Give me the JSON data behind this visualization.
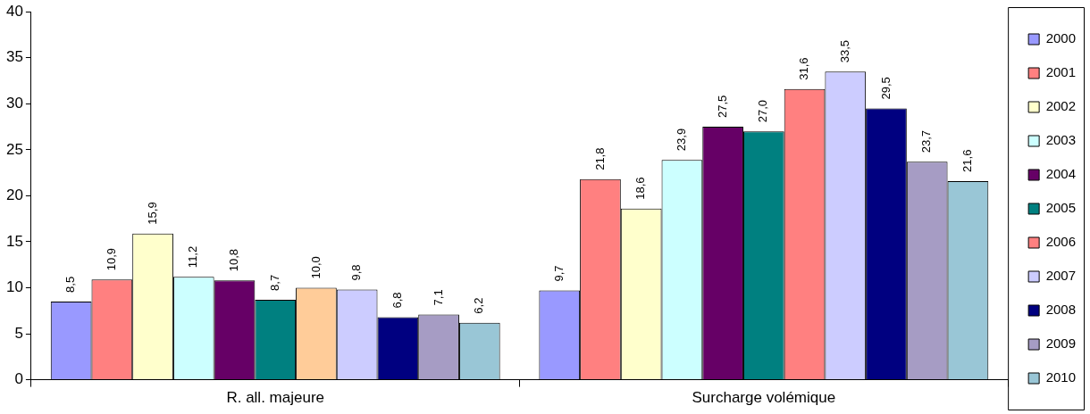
{
  "chart_data": {
    "type": "bar",
    "categories": [
      "R. all. majeure",
      "Surcharge volémique"
    ],
    "ylim": [
      0,
      40
    ],
    "yticks": [
      0,
      5,
      10,
      15,
      20,
      25,
      30,
      35,
      40
    ],
    "grid": false,
    "legend": "right",
    "series": [
      {
        "name": "2000",
        "color": "#9999ff",
        "values": [
          8.5,
          9.7
        ],
        "value_labels": [
          "8,5",
          "9,7"
        ]
      },
      {
        "name": "2001",
        "color": "#ff8080",
        "values": [
          10.9,
          21.8
        ],
        "value_labels": [
          "10,9",
          "21,8"
        ]
      },
      {
        "name": "2002",
        "color": "#ffffcc",
        "values": [
          15.9,
          18.6
        ],
        "value_labels": [
          "15,9",
          "18,6"
        ]
      },
      {
        "name": "2003",
        "color": "#ccffff",
        "values": [
          11.2,
          23.9
        ],
        "value_labels": [
          "11,2",
          "23,9"
        ]
      },
      {
        "name": "2004",
        "color": "#660066",
        "values": [
          10.8,
          27.5
        ],
        "value_labels": [
          "10,8",
          "27,5"
        ]
      },
      {
        "name": "2005",
        "color": "#008080",
        "values": [
          8.7,
          27.0
        ],
        "value_labels": [
          "8,7",
          "27,0"
        ]
      },
      {
        "name": "2006",
        "color": "#ff8080",
        "colors": [
          "#ffcc99",
          "#ff8080"
        ],
        "values": [
          10.0,
          31.6
        ],
        "value_labels": [
          "10,0",
          "31,6"
        ]
      },
      {
        "name": "2007",
        "color": "#ccccff",
        "values": [
          9.8,
          33.5
        ],
        "value_labels": [
          "9,8",
          "33,5"
        ]
      },
      {
        "name": "2008",
        "color": "#000080",
        "values": [
          6.8,
          29.5
        ],
        "value_labels": [
          "6,8",
          "29,5"
        ]
      },
      {
        "name": "2009",
        "color": "#a69cc4",
        "values": [
          7.1,
          23.7
        ],
        "value_labels": [
          "7,1",
          "23,7"
        ]
      },
      {
        "name": "2010",
        "color": "#99c6d6",
        "values": [
          6.2,
          21.6
        ],
        "value_labels": [
          "6,2",
          "21,6"
        ]
      }
    ]
  }
}
